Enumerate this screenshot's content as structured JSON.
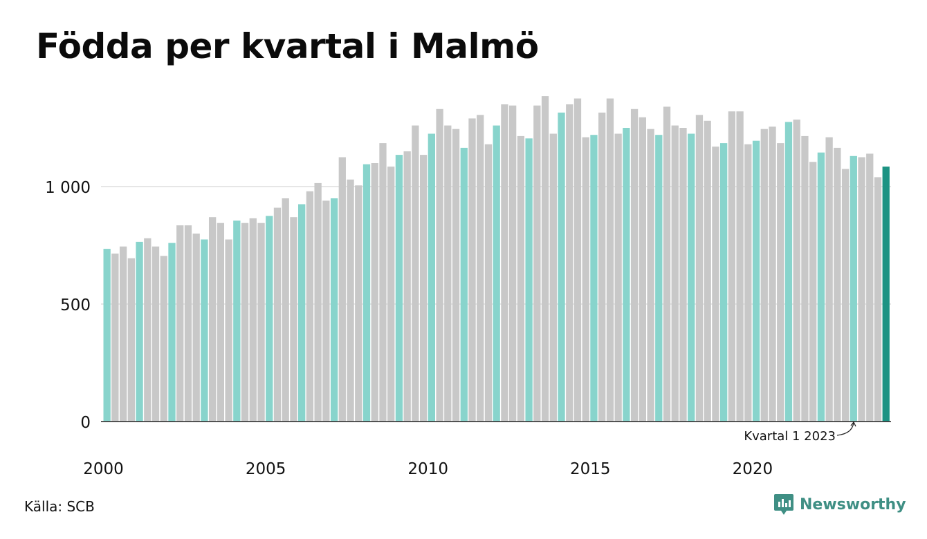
{
  "title": "Födda per kvartal i Malmö",
  "source": "Källa: SCB",
  "brand": {
    "name": "Newsworthy",
    "icon": "newsworthy-logo-icon"
  },
  "annotation": "Kvartal 1 2023",
  "colors": {
    "q1": "#88d4cc",
    "other": "#c8c8c8",
    "latest": "#1c9383",
    "brand": "#3f8f84",
    "grid": "#dddddd",
    "axis": "#222222"
  },
  "chart_data": {
    "type": "bar",
    "title": "Födda per kvartal i Malmö",
    "xlabel": "",
    "ylabel": "",
    "ylim": [
      0,
      1400
    ],
    "yticks": [
      0,
      500,
      1000
    ],
    "ytick_labels": [
      "0",
      "500",
      "1 000"
    ],
    "xtick_labels": [
      "2000",
      "2005",
      "2010",
      "2015",
      "2020"
    ],
    "grid": true,
    "legend": "none",
    "first_period": "2000 kvartal 1",
    "values": [
      735,
      715,
      745,
      695,
      765,
      780,
      745,
      705,
      760,
      835,
      835,
      800,
      775,
      870,
      845,
      775,
      855,
      845,
      865,
      845,
      875,
      910,
      950,
      870,
      925,
      980,
      1015,
      940,
      950,
      1125,
      1030,
      1005,
      1095,
      1100,
      1185,
      1085,
      1135,
      1150,
      1260,
      1135,
      1225,
      1330,
      1260,
      1245,
      1165,
      1290,
      1305,
      1180,
      1260,
      1350,
      1345,
      1215,
      1205,
      1345,
      1385,
      1225,
      1315,
      1350,
      1375,
      1210,
      1220,
      1315,
      1375,
      1225,
      1250,
      1330,
      1295,
      1245,
      1220,
      1340,
      1260,
      1250,
      1225,
      1305,
      1280,
      1170,
      1185,
      1320,
      1320,
      1180,
      1195,
      1245,
      1255,
      1185,
      1275,
      1285,
      1215,
      1105,
      1145,
      1210,
      1165,
      1075,
      1130,
      1125,
      1140,
      1040,
      1085
    ]
  }
}
